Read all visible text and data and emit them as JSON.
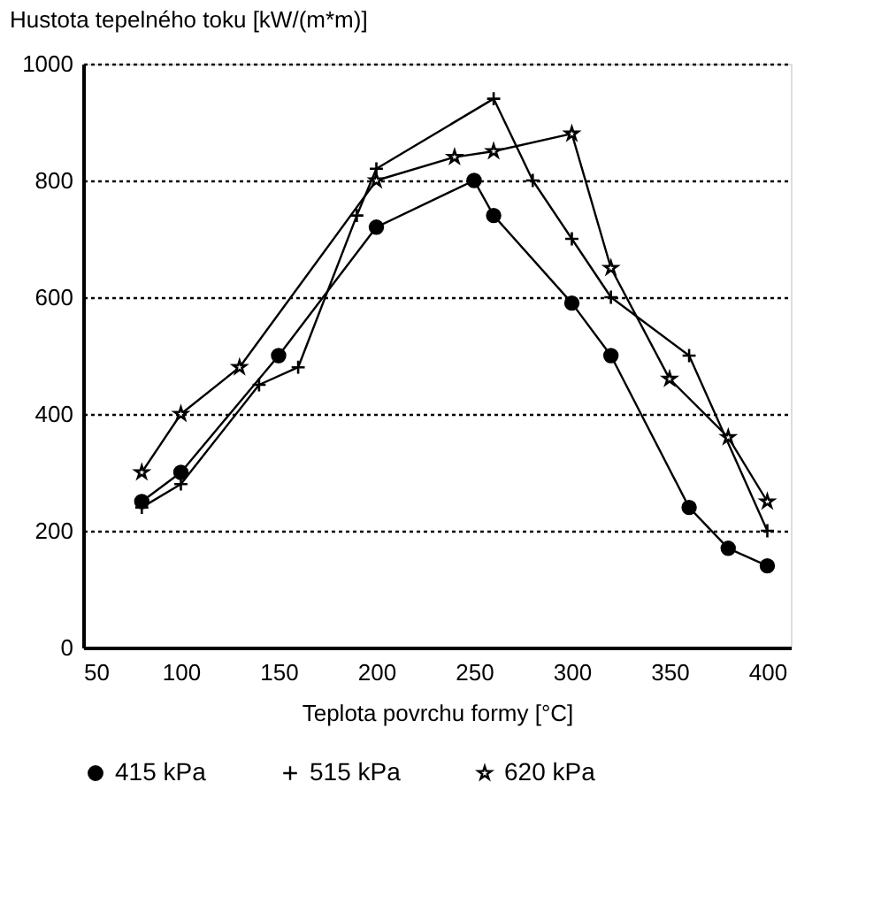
{
  "chart_data": {
    "type": "line",
    "xlabel": "Teplota povrchu formy [°C]",
    "ylabel": "Hustota tepelného toku [kW/(m*m)]",
    "xlim": [
      50,
      412
    ],
    "xticks": [
      50,
      100,
      150,
      200,
      250,
      300,
      350,
      400
    ],
    "ylim": [
      0,
      1000
    ],
    "yticks": [
      0,
      200,
      400,
      600,
      800,
      1000
    ],
    "grid": "y",
    "legend": "bottom",
    "series": [
      {
        "name": "415 kPa",
        "color": "#000000",
        "marker": "circle",
        "x": [
          80,
          100,
          150,
          200,
          250,
          260,
          300,
          320,
          360,
          380,
          400
        ],
        "values": [
          250,
          300,
          500,
          720,
          800,
          740,
          590,
          500,
          240,
          170,
          140
        ]
      },
      {
        "name": "515 kPa",
        "color": "#000000",
        "marker": "cross",
        "x": [
          80,
          100,
          140,
          160,
          190,
          200,
          260,
          280,
          300,
          320,
          360,
          400
        ],
        "values": [
          240,
          280,
          450,
          480,
          740,
          820,
          940,
          800,
          700,
          600,
          500,
          200
        ]
      },
      {
        "name": "620 kPa",
        "color": "#000000",
        "marker": "star",
        "x": [
          80,
          100,
          130,
          200,
          240,
          260,
          300,
          320,
          350,
          380,
          400
        ],
        "values": [
          300,
          400,
          480,
          800,
          840,
          850,
          880,
          650,
          460,
          360,
          250
        ]
      }
    ]
  }
}
